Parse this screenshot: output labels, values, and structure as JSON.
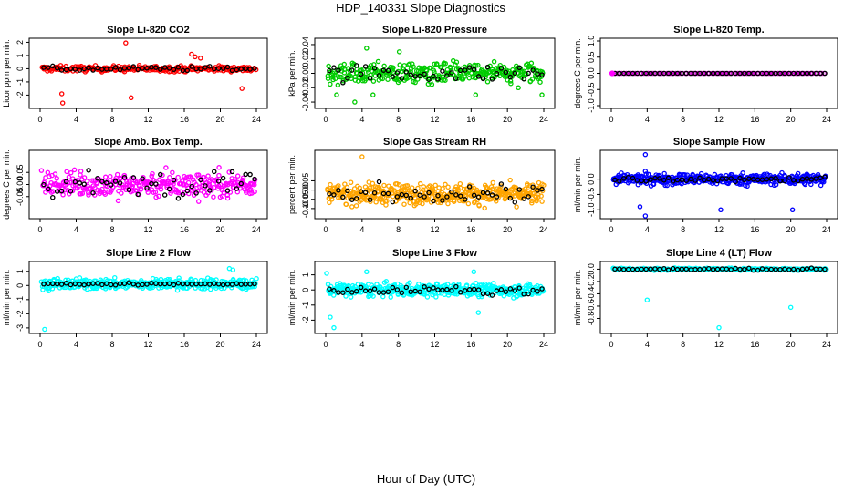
{
  "figure": {
    "title": "HDP_140331  Slope Diagnostics",
    "xlabel": "Hour of Day (UTC)"
  },
  "chart_data": [
    {
      "type": "scatter",
      "title": "Slope Li-820 CO2",
      "ylabel": "Licor ppm per min.",
      "color": "#ff0000",
      "xlim": [
        0,
        24
      ],
      "ylim": [
        -2.8,
        2.1
      ],
      "yticks": [
        -2,
        -1,
        0,
        1,
        2
      ],
      "yticklabels": [
        "-2",
        "-1",
        "0",
        "1",
        "2"
      ],
      "xticks": [
        0,
        4,
        8,
        12,
        16,
        20,
        24
      ],
      "center": 0,
      "spread": 0.18,
      "ref_spread": 0.12,
      "n": 260,
      "n_ref": 48,
      "outliers": [
        [
          2.4,
          -1.9
        ],
        [
          2.5,
          -2.6
        ],
        [
          9.5,
          1.95
        ],
        [
          10.1,
          -2.2
        ],
        [
          16.8,
          1.1
        ],
        [
          17.2,
          0.9
        ],
        [
          17.8,
          0.8
        ],
        [
          22.4,
          -1.5
        ]
      ]
    },
    {
      "type": "scatter",
      "title": "Slope Li-820 Pressure",
      "ylabel": "kPa per min.",
      "color": "#00cc00",
      "xlim": [
        0,
        24
      ],
      "ylim": [
        -0.045,
        0.045
      ],
      "yticks": [
        -0.04,
        -0.02,
        0,
        0.02,
        0.04
      ],
      "yticklabels": [
        "-0.04",
        "-0.02",
        "0.00",
        "0.02",
        "0.04"
      ],
      "xticks": [
        0,
        4,
        8,
        12,
        16,
        20,
        24
      ],
      "center": 0.0,
      "spread": 0.012,
      "ref_spread": 0.008,
      "n": 320,
      "n_ref": 48,
      "outliers": [
        [
          1.2,
          -0.03
        ],
        [
          3.2,
          -0.04
        ],
        [
          4.5,
          0.035
        ],
        [
          5.2,
          -0.03
        ],
        [
          8.1,
          0.03
        ],
        [
          16.5,
          -0.03
        ],
        [
          21.2,
          -0.02
        ],
        [
          23.8,
          -0.03
        ]
      ]
    },
    {
      "type": "scatter",
      "title": "Slope Li-820 Temp.",
      "ylabel": "degrees C per min.",
      "color": "#cc00cc",
      "xlim": [
        0,
        24
      ],
      "ylim": [
        -1,
        1
      ],
      "yticks": [
        -1,
        -0.5,
        0,
        0.5,
        1
      ],
      "yticklabels": [
        "-1.0",
        "-0.5",
        "0.0",
        "0.5",
        "1.0"
      ],
      "xticks": [
        0,
        4,
        8,
        12,
        16,
        20,
        24
      ],
      "center": 0,
      "spread": 0.0,
      "ref_spread": 0.0,
      "n": 95,
      "n_ref": 48,
      "outliers": []
    },
    {
      "type": "scatter",
      "title": "Slope Amb. Box Temp.",
      "ylabel": "degrees C per min.",
      "color": "#ff00ff",
      "xlim": [
        0,
        24
      ],
      "ylim": [
        -0.13,
        0.13
      ],
      "yticks": [
        -0.05,
        0,
        0.05
      ],
      "yticklabels": [
        "-0.05",
        "0.00",
        "0.05"
      ],
      "xticks": [
        0,
        4,
        8,
        12,
        16,
        20,
        24
      ],
      "center": 0,
      "spread": 0.045,
      "ref_spread": 0.04,
      "n": 320,
      "n_ref": 48,
      "outliers": []
    },
    {
      "type": "scatter",
      "title": "Slope Gas Stream RH",
      "ylabel": "percent per min.",
      "color": "#ffa500",
      "xlim": [
        0,
        24
      ],
      "ylim": [
        -0.14,
        0.2
      ],
      "yticks": [
        -0.1,
        -0.05,
        0,
        0.05
      ],
      "yticklabels": [
        "-0.10",
        "-0.05",
        "0.00",
        "0.05"
      ],
      "xticks": [
        0,
        4,
        8,
        12,
        16,
        20,
        24
      ],
      "center": -0.02,
      "spread": 0.045,
      "ref_spread": 0.035,
      "n": 400,
      "n_ref": 48,
      "outliers": [
        [
          4.0,
          0.18
        ]
      ]
    },
    {
      "type": "scatter",
      "title": "Slope Sample Flow",
      "ylabel": "ml/min per min.",
      "color": "#0000ff",
      "xlim": [
        0,
        24
      ],
      "ylim": [
        -1.2,
        0.85
      ],
      "yticks": [
        -1,
        -0.5,
        0
      ],
      "yticklabels": [
        "-1.0",
        "-0.5",
        "0.0"
      ],
      "xticks": [
        0,
        4,
        8,
        12,
        16,
        20,
        24
      ],
      "center": 0,
      "spread": 0.15,
      "ref_spread": 0.06,
      "n": 400,
      "n_ref": 48,
      "outliers": [
        [
          3.2,
          -0.9
        ],
        [
          3.8,
          -1.2
        ],
        [
          3.8,
          0.8
        ],
        [
          12.2,
          -1.0
        ],
        [
          20.2,
          -1.0
        ]
      ]
    },
    {
      "type": "scatter",
      "title": "Slope Line 2 Flow",
      "ylabel": "ml/min per min.",
      "color": "#00ffff",
      "xlim": [
        0,
        24
      ],
      "ylim": [
        -3.2,
        1.5
      ],
      "yticks": [
        -3,
        -2,
        -1,
        0,
        1
      ],
      "yticklabels": [
        "-3",
        "-2",
        "-1",
        "0",
        "1"
      ],
      "xticks": [
        0,
        4,
        8,
        12,
        16,
        20,
        24
      ],
      "center": 0.1,
      "spread": 0.3,
      "ref_spread": 0.05,
      "n": 420,
      "n_ref": 48,
      "outliers": [
        [
          0.5,
          -3.1
        ],
        [
          21.0,
          1.2
        ],
        [
          21.4,
          1.1
        ]
      ]
    },
    {
      "type": "scatter",
      "title": "Slope Line 3 Flow",
      "ylabel": "ml/min per min.",
      "color": "#00ffff",
      "xlim": [
        0,
        24
      ],
      "ylim": [
        -2.7,
        1.7
      ],
      "yticks": [
        -2,
        -1,
        0,
        1
      ],
      "yticklabels": [
        "-2",
        "-1",
        "0",
        "1"
      ],
      "xticks": [
        0,
        4,
        8,
        12,
        16,
        20,
        24
      ],
      "center": 0,
      "spread": 0.35,
      "ref_spread": 0.25,
      "n": 420,
      "n_ref": 48,
      "outliers": [
        [
          0.1,
          1.1
        ],
        [
          0.5,
          -1.8
        ],
        [
          0.9,
          -2.5
        ],
        [
          4.5,
          1.2
        ],
        [
          16.3,
          1.2
        ],
        [
          16.8,
          -1.5
        ]
      ]
    },
    {
      "type": "scatter",
      "title": "Slope Line 4 (LT) Flow",
      "ylabel": "ml/min per min.",
      "color": "#00ffff",
      "xlim": [
        0,
        24
      ],
      "ylim": [
        -1.0,
        0.08
      ],
      "yticks": [
        -0.8,
        -0.6,
        -0.4,
        -0.2,
        0
      ],
      "yticklabels": [
        "-0.8",
        "-0.6",
        "-0.4",
        "-0.2",
        "0.0"
      ],
      "xticks": [
        0,
        4,
        8,
        12,
        16,
        20,
        24
      ],
      "center": 0,
      "spread": 0.015,
      "ref_spread": 0.01,
      "n": 320,
      "n_ref": 48,
      "outliers": [
        [
          4.0,
          -0.5
        ],
        [
          12.0,
          -0.95
        ],
        [
          20.0,
          -0.62
        ]
      ]
    }
  ]
}
